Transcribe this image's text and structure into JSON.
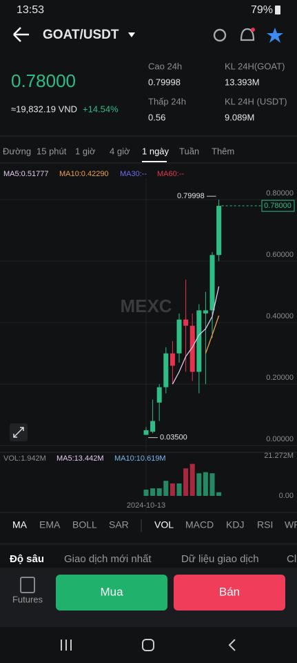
{
  "status": {
    "time": "13:53",
    "battery": "79%"
  },
  "header": {
    "pair": "GOAT/USDT"
  },
  "price": {
    "last": "0.78000",
    "vnd": "≈19,832.19 VND",
    "change": "+14.54%"
  },
  "stats": [
    {
      "label": "Cao 24h",
      "value": "0.79998"
    },
    {
      "label": "KL 24H(GOAT)",
      "value": "13.393M"
    },
    {
      "label": "Thấp 24h",
      "value": "0.56"
    },
    {
      "label": "KL 24H (USDT)",
      "value": "9.089M"
    }
  ],
  "timeframes": [
    "Đường",
    "15 phút",
    "1 giờ",
    "4 giờ",
    "1 ngày",
    "Tuần",
    "Thêm"
  ],
  "chart": {
    "type": "candlestick",
    "watermark": "MEXC",
    "ma_labels": [
      "MA5:0.51777",
      "MA10:0.42290",
      "MA30:--",
      "MA60:--"
    ],
    "up_color": "#2ebd85",
    "down_color": "#e8334f",
    "ylim": [
      -0.022,
      0.87
    ],
    "yticks": [
      {
        "value": 0.8,
        "label": "0.80000"
      },
      {
        "value": 0.6,
        "label": "0.60000"
      },
      {
        "value": 0.4,
        "label": "0.40000"
      },
      {
        "value": 0.2,
        "label": "0.20000"
      },
      {
        "value": 0,
        "label": "0.00000"
      }
    ],
    "high_label": "0.79998",
    "low_label": "0.03500",
    "last_label": "0.78000",
    "date_label": "2024-10-13",
    "open": [
      0.035,
      0.045,
      0.14,
      0.19,
      0.3,
      0.3,
      0.41,
      0.39,
      0.24,
      0.43,
      0.44,
      0.62
    ],
    "close": [
      0.05,
      0.08,
      0.19,
      0.3,
      0.26,
      0.41,
      0.39,
      0.24,
      0.44,
      0.44,
      0.62,
      0.78
    ],
    "high": [
      0.06,
      0.15,
      0.2,
      0.32,
      0.34,
      0.43,
      0.54,
      0.43,
      0.46,
      0.5,
      0.63,
      0.79998
    ],
    "low": [
      0.035,
      0.04,
      0.08,
      0.17,
      0.2,
      0.27,
      0.24,
      0.21,
      0.17,
      0.2,
      0.35,
      0.6
    ],
    "ma": [
      {
        "name": "MA5",
        "color": "#e4c9f0",
        "values": [
          null,
          null,
          null,
          null,
          0.2,
          0.24,
          0.29,
          0.32,
          0.36,
          0.38,
          0.42,
          0.51777
        ]
      },
      {
        "name": "MA10",
        "color": "#f0a04b",
        "values": [
          null,
          null,
          null,
          null,
          null,
          null,
          null,
          null,
          null,
          0.3,
          0.36,
          0.4229
        ]
      }
    ],
    "volume": {
      "labels": [
        "VOL:1.942M",
        "MA5:13.442M",
        "MA10:10.619M"
      ],
      "ylim": [
        0,
        21.272
      ],
      "yticks": [
        {
          "value": 21.272,
          "label": "21.272M"
        },
        {
          "value": 0,
          "label": "0.00"
        }
      ],
      "values": [
        3.3,
        4,
        4,
        8,
        6.6,
        6.6,
        14.6,
        17,
        12,
        12.6,
        12,
        1.942
      ]
    }
  },
  "indicators": [
    "MA",
    "EMA",
    "BOLL",
    "SAR",
    "VOL",
    "MACD",
    "KDJ",
    "RSI",
    "WR"
  ],
  "tabs": [
    "Độ sâu",
    "Giao dịch mới nhất",
    "Dữ liệu giao dịch",
    "Cl"
  ],
  "buttons": {
    "futures": "Futures",
    "buy": "Mua",
    "sell": "Bán"
  }
}
